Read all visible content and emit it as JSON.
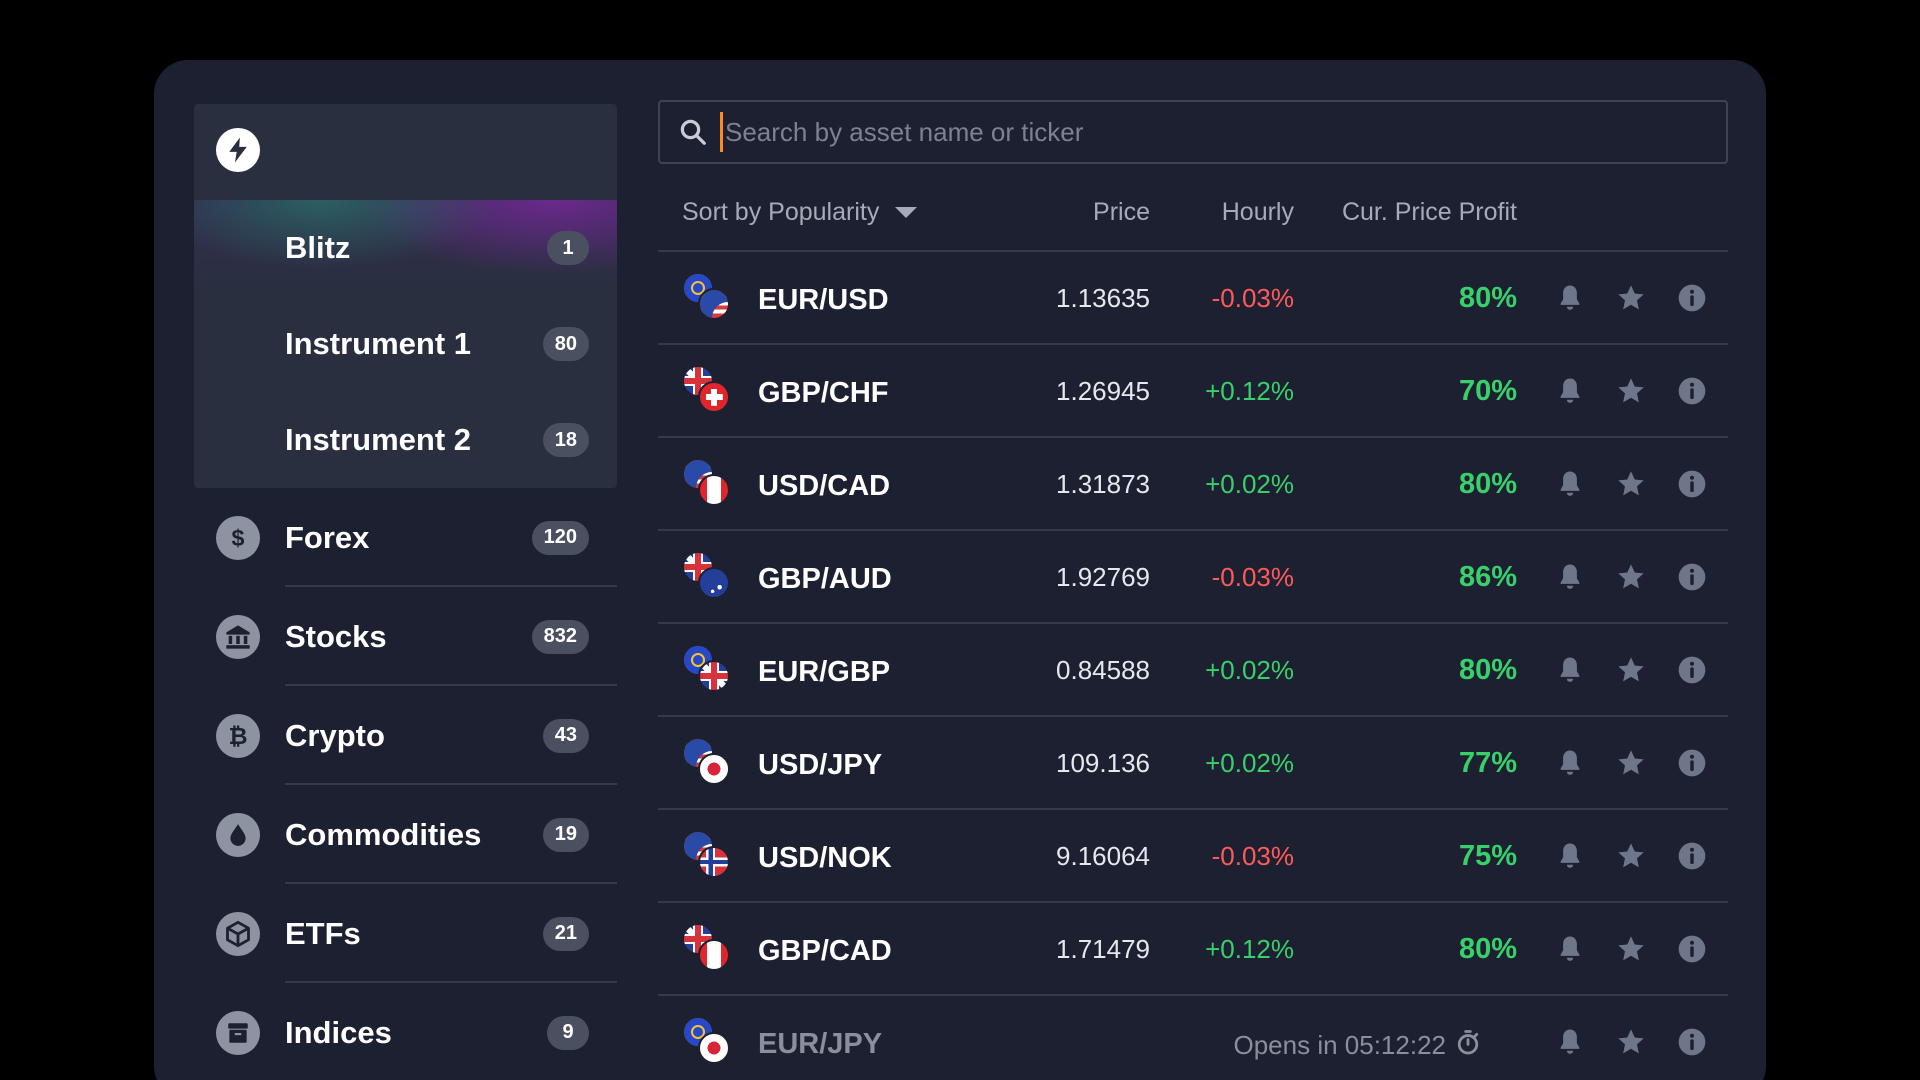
{
  "sidebar": {
    "logo_icon": "lightning-bolt-icon",
    "featured": [
      {
        "label": "Blitz",
        "count": "1",
        "active": true
      },
      {
        "label": "Instrument 1",
        "count": "80",
        "active": false
      },
      {
        "label": "Instrument 2",
        "count": "18",
        "active": false
      }
    ],
    "categories": [
      {
        "label": "Forex",
        "count": "120",
        "icon": "dollar-icon"
      },
      {
        "label": "Stocks",
        "count": "832",
        "icon": "bank-icon"
      },
      {
        "label": "Crypto",
        "count": "43",
        "icon": "bitcoin-icon"
      },
      {
        "label": "Commodities",
        "count": "19",
        "icon": "drop-icon"
      },
      {
        "label": "ETFs",
        "count": "21",
        "icon": "cube-icon"
      },
      {
        "label": "Indices",
        "count": "9",
        "icon": "archive-icon"
      }
    ]
  },
  "search": {
    "placeholder": "Search by asset name or ticker",
    "value": ""
  },
  "table": {
    "sort_label": "Sort by Popularity",
    "columns": {
      "price": "Price",
      "hourly": "Hourly",
      "profit": "Cur. Price Profit"
    },
    "rows": [
      {
        "pair": "EUR/USD",
        "price": "1.13635",
        "hourly": "-0.03%",
        "trend": "neg",
        "profit": "80%",
        "flags": [
          "eu",
          "us"
        ]
      },
      {
        "pair": "GBP/CHF",
        "price": "1.26945",
        "hourly": "+0.12%",
        "trend": "pos",
        "profit": "70%",
        "flags": [
          "gb",
          "ch"
        ]
      },
      {
        "pair": "USD/CAD",
        "price": "1.31873",
        "hourly": "+0.02%",
        "trend": "pos",
        "profit": "80%",
        "flags": [
          "us",
          "ca"
        ]
      },
      {
        "pair": "GBP/AUD",
        "price": "1.92769",
        "hourly": "-0.03%",
        "trend": "neg",
        "profit": "86%",
        "flags": [
          "gb",
          "au"
        ]
      },
      {
        "pair": "EUR/GBP",
        "price": "0.84588",
        "hourly": "+0.02%",
        "trend": "pos",
        "profit": "80%",
        "flags": [
          "eu",
          "gb"
        ]
      },
      {
        "pair": "USD/JPY",
        "price": "109.136",
        "hourly": "+0.02%",
        "trend": "pos",
        "profit": "77%",
        "flags": [
          "us",
          "jp"
        ]
      },
      {
        "pair": "USD/NOK",
        "price": "9.16064",
        "hourly": "-0.03%",
        "trend": "neg",
        "profit": "75%",
        "flags": [
          "us",
          "no"
        ]
      },
      {
        "pair": "GBP/CAD",
        "price": "1.71479",
        "hourly": "+0.12%",
        "trend": "pos",
        "profit": "80%",
        "flags": [
          "gb",
          "ca"
        ]
      }
    ],
    "closed_row": {
      "pair": "EUR/JPY",
      "opens": "Opens in 05:12:22",
      "flags": [
        "eu",
        "jp"
      ]
    }
  },
  "colors": {
    "panel_bg": "#1c2030",
    "positive": "#39d06b",
    "negative": "#ff5a5a",
    "caret": "#ff8c1a"
  }
}
